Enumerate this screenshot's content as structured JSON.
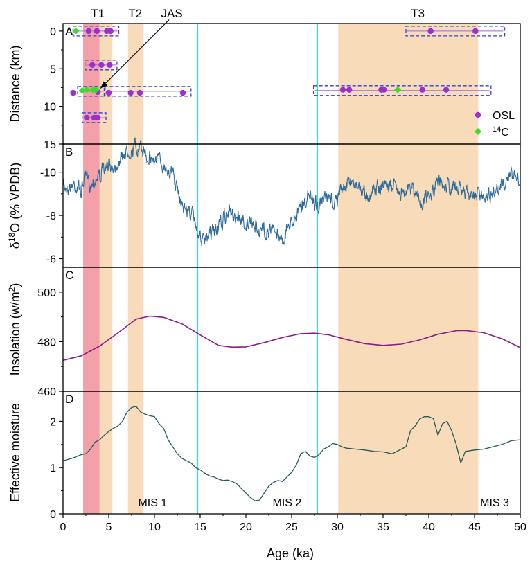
{
  "chart_data": {
    "type": "multi-panel time series",
    "xlabel": "Age (ka)",
    "xlim": [
      0,
      50
    ],
    "xticks": [
      0,
      5,
      10,
      15,
      20,
      25,
      30,
      35,
      40,
      45,
      50
    ],
    "shaded_intervals": [
      {
        "label": "",
        "start": 2.2,
        "end": 4.0,
        "color": "#f4a0a8"
      },
      {
        "label": "T1",
        "start": 4.0,
        "end": 5.4,
        "color": "#f8dbb8"
      },
      {
        "label": "T2",
        "start": 7.1,
        "end": 8.8,
        "color": "#f8dbb8"
      },
      {
        "label": "T3",
        "start": 30.1,
        "end": 45.4,
        "color": "#f8dbb8"
      }
    ],
    "period_labels": [
      {
        "text": "T1",
        "x": 3.8
      },
      {
        "text": "T2",
        "x": 7.9
      },
      {
        "text": "JAS",
        "x": 11.9
      },
      {
        "text": "T3",
        "x": 38.8
      }
    ],
    "vertical_lines": [
      {
        "x": 14.7,
        "color": "#3ed8df"
      },
      {
        "x": 27.8,
        "color": "#3ed8df"
      }
    ],
    "mis_labels": [
      {
        "text": "MIS 1",
        "x": 9.8
      },
      {
        "text": "MIS 2",
        "x": 24.5
      },
      {
        "text": "MIS 3",
        "x": 47.2
      }
    ],
    "arrow": {
      "from": {
        "x": 11.6,
        "y": -1.5
      },
      "to": {
        "x": 4.1,
        "y": 7.6
      }
    },
    "panels": [
      {
        "letter": "A",
        "ylabel": "Distance (km)",
        "ylim": [
          15,
          -1
        ],
        "yticks": [
          0,
          5,
          10,
          15
        ],
        "groups": [
          {
            "y": 0,
            "x_range": [
              1.1,
              6.1
            ]
          },
          {
            "y": 4.5,
            "x_range": [
              2.4,
              5.9
            ]
          },
          {
            "y": 8.0,
            "x_range": [
              1.6,
              4.6
            ]
          },
          {
            "y": 8.0,
            "x_range": [
              4.5,
              14.0
            ]
          },
          {
            "y": 11.5,
            "x_range": [
              2.1,
              4.7
            ]
          },
          {
            "y": 0,
            "x_range": [
              37.5,
              48.3
            ]
          },
          {
            "y": 7.9,
            "x_range": [
              27.4,
              46.8
            ]
          }
        ],
        "series": [
          {
            "name": "OSL",
            "marker": "circle",
            "color": "#9b2fd0",
            "points": [
              [
                2.8,
                0
              ],
              [
                3.7,
                0
              ],
              [
                4.8,
                0
              ],
              [
                5.2,
                0
              ],
              [
                3.2,
                4.5
              ],
              [
                4.2,
                4.5
              ],
              [
                5.1,
                4.5
              ],
              [
                1.1,
                8.2
              ],
              [
                3.8,
                8.1
              ],
              [
                5.0,
                8.2
              ],
              [
                7.4,
                8.2
              ],
              [
                8.4,
                8.2
              ],
              [
                13.1,
                8.2
              ],
              [
                2.6,
                11.5
              ],
              [
                3.4,
                11.5
              ],
              [
                3.8,
                11.5
              ],
              [
                40.2,
                0
              ],
              [
                45.1,
                0
              ],
              [
                30.6,
                7.8
              ],
              [
                31.3,
                7.8
              ],
              [
                34.8,
                7.8
              ],
              [
                35.1,
                7.8
              ],
              [
                39.3,
                7.8
              ],
              [
                41.9,
                7.8
              ]
            ]
          },
          {
            "name": "14C",
            "marker": "diamond",
            "color": "#3edb2a",
            "points": [
              [
                1.4,
                0
              ],
              [
                2.1,
                7.9
              ],
              [
                2.6,
                7.8
              ],
              [
                3.3,
                7.8
              ],
              [
                3.6,
                7.8
              ],
              [
                36.6,
                7.8
              ]
            ]
          }
        ],
        "legend": [
          {
            "label": "OSL",
            "marker": "circle"
          },
          {
            "sup": "14",
            "label": "C",
            "marker": "diamond"
          }
        ]
      },
      {
        "letter": "B",
        "ylabel": "δ18O (% VPDB)",
        "ylim": [
          -5.6,
          -11.3
        ],
        "yticks": [
          -10,
          -8,
          -6
        ],
        "line_color": "#2f6c9c",
        "trend_anchors": [
          [
            0,
            -9.4
          ],
          [
            1,
            -9.4
          ],
          [
            2,
            -9.1
          ],
          [
            2.5,
            -9.8
          ],
          [
            3,
            -9.6
          ],
          [
            4,
            -9.9
          ],
          [
            5,
            -10.2
          ],
          [
            6,
            -10.6
          ],
          [
            7,
            -10.9
          ],
          [
            8,
            -11.0
          ],
          [
            9,
            -10.8
          ],
          [
            10,
            -10.6
          ],
          [
            11,
            -10.3
          ],
          [
            12,
            -9.9
          ],
          [
            13,
            -8.5
          ],
          [
            14,
            -8.0
          ],
          [
            14.7,
            -7.4
          ],
          [
            15.5,
            -6.8
          ],
          [
            16,
            -7.0
          ],
          [
            17,
            -7.4
          ],
          [
            18,
            -8.1
          ],
          [
            19,
            -7.8
          ],
          [
            20,
            -7.6
          ],
          [
            21,
            -7.6
          ],
          [
            22,
            -7.4
          ],
          [
            23,
            -7.3
          ],
          [
            24,
            -7.0
          ],
          [
            25,
            -7.8
          ],
          [
            26,
            -8.4
          ],
          [
            27,
            -8.9
          ],
          [
            28,
            -8.6
          ],
          [
            29,
            -8.7
          ],
          [
            30,
            -8.7
          ],
          [
            31,
            -9.6
          ],
          [
            32,
            -9.6
          ],
          [
            33,
            -9.2
          ],
          [
            34,
            -9.3
          ],
          [
            35,
            -9.6
          ],
          [
            36,
            -9.4
          ],
          [
            37,
            -9.2
          ],
          [
            38,
            -9.4
          ],
          [
            39,
            -8.8
          ],
          [
            40,
            -8.6
          ],
          [
            41,
            -9.3
          ],
          [
            42,
            -9.4
          ],
          [
            43,
            -9.2
          ],
          [
            44,
            -8.9
          ],
          [
            45,
            -8.8
          ],
          [
            46,
            -9.0
          ],
          [
            47,
            -9.2
          ],
          [
            48,
            -9.8
          ],
          [
            49,
            -10.0
          ],
          [
            50,
            -9.4
          ]
        ],
        "noise_amplitude": 0.5
      },
      {
        "letter": "C",
        "ylabel": "Insolation (w/m2)",
        "ylim": [
          460,
          510
        ],
        "yticks": [
          460,
          480,
          500
        ],
        "line_color": "#8b1a8b",
        "x": [
          0,
          2,
          4,
          6,
          8,
          9.5,
          11,
          13,
          15,
          17,
          18.5,
          20,
          22,
          24,
          26,
          27.5,
          29,
          31,
          33,
          35,
          37,
          39,
          41,
          43,
          44,
          46,
          48,
          50
        ],
        "y": [
          472.5,
          474.3,
          478.2,
          483.5,
          489.1,
          490.3,
          489.8,
          487.2,
          482.7,
          478.5,
          477.8,
          477.9,
          479.6,
          481.7,
          483.2,
          483.4,
          482.8,
          480.9,
          479.2,
          478.5,
          479.0,
          480.7,
          483.0,
          484.4,
          484.5,
          483.6,
          481.2,
          477.6
        ]
      },
      {
        "letter": "D",
        "ylabel": "Effective moisture",
        "ylim": [
          0,
          2.65
        ],
        "yticks": [
          0,
          1,
          2
        ],
        "line_color": "#215a5e",
        "x": [
          0,
          1,
          2,
          2.5,
          3,
          3.5,
          4,
          4.5,
          5,
          5.5,
          6,
          6.5,
          7,
          7.5,
          8,
          8.5,
          9,
          9.5,
          10,
          10.5,
          11,
          11.5,
          12,
          12.5,
          13,
          13.5,
          14,
          14.5,
          15,
          15.5,
          16,
          16.5,
          17,
          17.5,
          18,
          18.5,
          19,
          19.5,
          20,
          20.5,
          21,
          21.5,
          22,
          22.5,
          23,
          23.5,
          24,
          24.5,
          25,
          25.5,
          26,
          26.5,
          27,
          27.5,
          28,
          28.5,
          29,
          29.5,
          30,
          30.5,
          31,
          32,
          33,
          34,
          35,
          36,
          37,
          37.5,
          38,
          38.5,
          39,
          39.5,
          40,
          40.5,
          41,
          41.5,
          42,
          42.5,
          43,
          43.5,
          44,
          45,
          46,
          47,
          48,
          49,
          50
        ],
        "y": [
          1.15,
          1.2,
          1.28,
          1.3,
          1.4,
          1.55,
          1.6,
          1.7,
          1.78,
          1.85,
          1.9,
          2.0,
          2.2,
          2.3,
          2.32,
          2.2,
          2.15,
          2.12,
          2.1,
          1.95,
          1.85,
          1.6,
          1.45,
          1.3,
          1.2,
          1.15,
          1.1,
          1.0,
          0.95,
          0.88,
          0.82,
          0.8,
          0.75,
          0.72,
          0.73,
          0.7,
          0.65,
          0.55,
          0.45,
          0.35,
          0.28,
          0.3,
          0.45,
          0.6,
          0.68,
          0.72,
          0.7,
          0.8,
          0.9,
          1.05,
          1.3,
          1.35,
          1.25,
          1.22,
          1.28,
          1.4,
          1.45,
          1.52,
          1.5,
          1.45,
          1.42,
          1.4,
          1.38,
          1.35,
          1.34,
          1.3,
          1.4,
          1.45,
          1.8,
          1.9,
          2.05,
          2.1,
          2.1,
          2.06,
          1.7,
          1.95,
          2.0,
          1.8,
          1.5,
          1.1,
          1.35,
          1.38,
          1.4,
          1.45,
          1.5,
          1.58,
          1.6
        ]
      }
    ]
  }
}
